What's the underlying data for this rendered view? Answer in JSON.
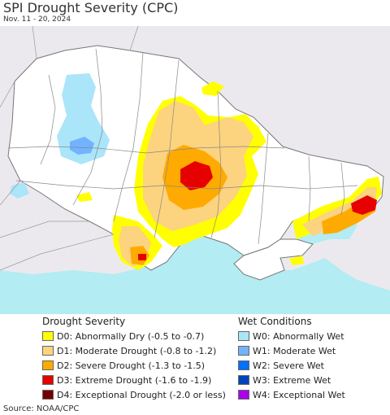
{
  "header": {
    "title": "SPI Drought Severity (CPC)",
    "date_range": "Nov. 11 - 20, 2024"
  },
  "map": {
    "land_color": "#ffffff",
    "foreign_land_color": "#ece9ee",
    "sea_color": "#b3ecf3",
    "border_color": "#888888"
  },
  "legend": {
    "drought_heading": "Drought Severity",
    "wet_heading": "Wet Conditions",
    "drought": [
      {
        "label": "D0: Abnormally Dry (-0.5 to -0.7)",
        "color": "#ffff00"
      },
      {
        "label": "D1: Moderate Drought (-0.8 to -1.2)",
        "color": "#fcd37f"
      },
      {
        "label": "D2: Severe Drought (-1.3 to -1.5)",
        "color": "#ffaa00"
      },
      {
        "label": "D3: Extreme Drought (-1.6 to -1.9)",
        "color": "#e60000"
      },
      {
        "label": "D4: Exceptional Drought (-2.0 or less)",
        "color": "#730000"
      }
    ],
    "wet": [
      {
        "label": "W0: Abnormally Wet",
        "color": "#aae5fa"
      },
      {
        "label": "W1: Moderate Wet",
        "color": "#73b2ff"
      },
      {
        "label": "W2: Severe Wet",
        "color": "#0070ff"
      },
      {
        "label": "W3: Extreme Wet",
        "color": "#0044bb"
      },
      {
        "label": "W4: Exceptional Wet",
        "color": "#aa00ee"
      }
    ]
  },
  "footer": {
    "source": "Source: NOAA/CPC"
  }
}
